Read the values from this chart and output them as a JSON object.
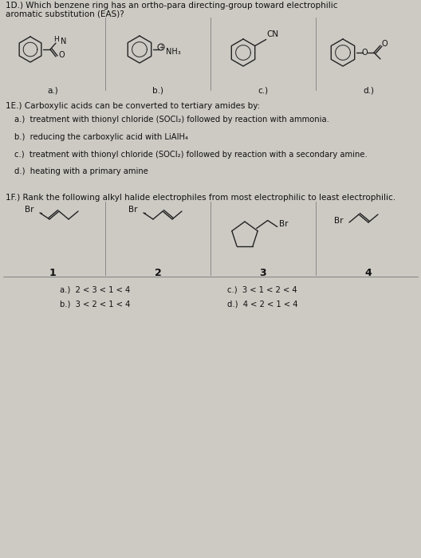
{
  "bg_color": "#cdcac4",
  "text_color": "#111111",
  "title_1D_line1": "1D.) Which benzene ring has an ortho-para directing-group toward electrophilic",
  "title_1D_line2": "aromatic substitution (EAS)?",
  "labels_1D": [
    "a.)",
    "b.)",
    "c.)",
    "d.)"
  ],
  "title_1E": "1E.) Carboxylic acids can be converted to tertiary amides by:",
  "opt_1E_a": "a.)  treatment with thionyl chloride (SOCl₂) followed by reaction with ammonia.",
  "opt_1E_b": "b.)  reducing the carboxylic acid with LiAlH₄",
  "opt_1E_c": "c.)  treatment with thionyl chloride (SOCl₂) followed by reaction with a secondary amine.",
  "opt_1E_d": "d.)  heating with a primary amine",
  "title_1F": "1F.) Rank the following alkyl halide electrophiles from most electrophilic to least electrophilic.",
  "labels_1F": [
    "1",
    "2",
    "3",
    "4"
  ],
  "opt_1F_a": "a.)  2 < 3 < 1 < 4",
  "opt_1F_b": "b.)  3 < 2 < 1 < 4",
  "opt_1F_c": "c.)  3 < 1 < 2 < 4",
  "opt_1F_d": "d.)  4 < 2 < 1 < 4",
  "fs_title": 7.5,
  "fs_body": 7.2,
  "fs_label": 7.5,
  "fs_struct": 6.5,
  "divider_color": "#888888",
  "line_color": "#222222"
}
